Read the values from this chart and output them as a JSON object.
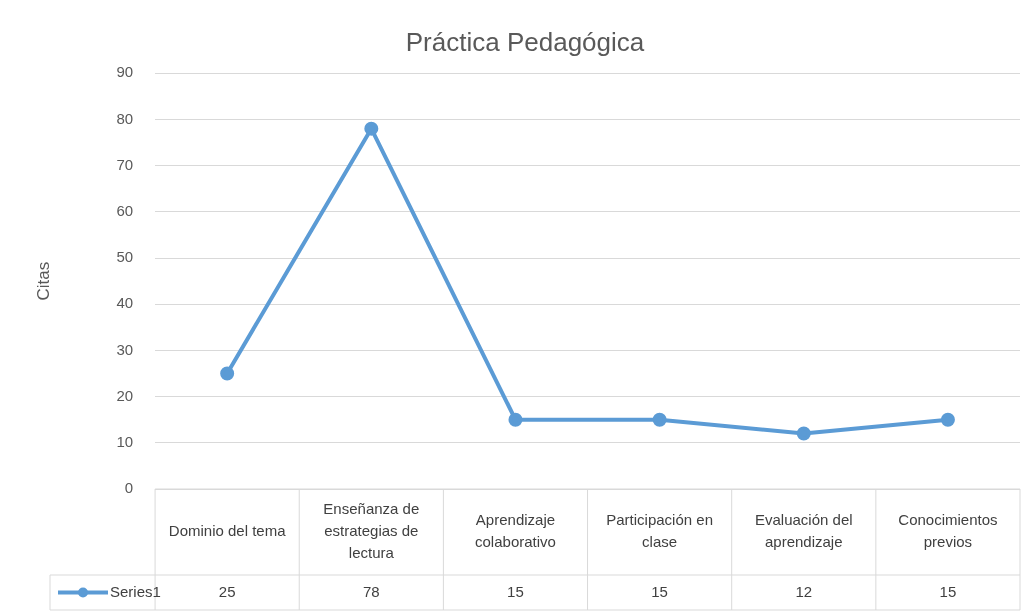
{
  "chart_data": {
    "type": "line",
    "title": "Práctica Pedagógica",
    "ylabel": "Citas",
    "categories": [
      "Dominio del tema",
      "Enseñanza de estrategias de lectura",
      "Aprendizaje colaborativo",
      "Participación en clase",
      "Evaluación del aprendizaje",
      "Conocimientos previos"
    ],
    "series": [
      {
        "name": "Series1",
        "color": "#5b9bd5",
        "values": [
          25,
          78,
          15,
          15,
          12,
          15
        ]
      }
    ],
    "ylim": [
      0,
      90
    ],
    "yticks": [
      0,
      10,
      20,
      30,
      40,
      50,
      60,
      70,
      80,
      90
    ],
    "grid": "y",
    "marker": "circle",
    "line_style": "solid",
    "data_labels": true,
    "legend": "bottom"
  }
}
